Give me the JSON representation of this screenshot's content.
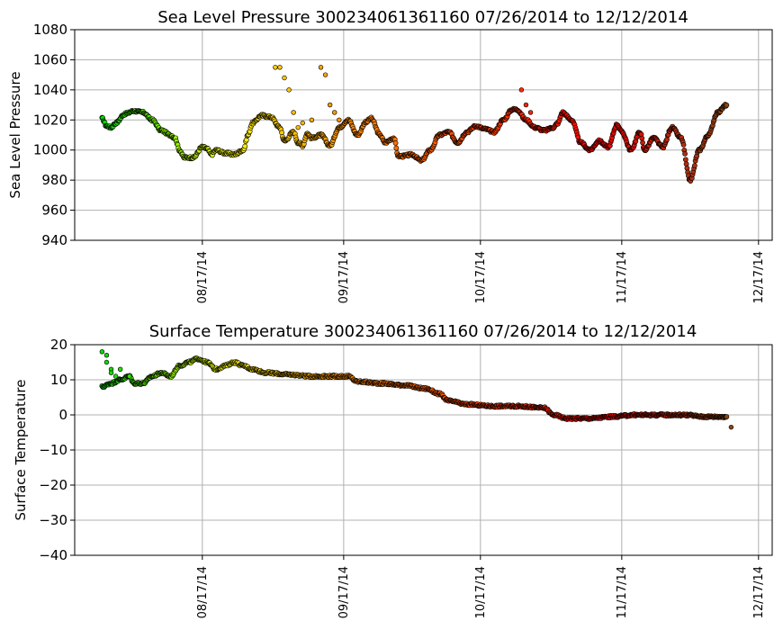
{
  "chart_data": [
    {
      "type": "scatter",
      "title": "Sea Level Pressure 300234061361160  07/26/2014 to 12/12/2014",
      "xlabel": "",
      "ylabel": "Sea Level Pressure",
      "ylim": [
        940,
        1080
      ],
      "yticks": [
        "940",
        "960",
        "980",
        "1000",
        "1020",
        "1040",
        "1060",
        "1080"
      ],
      "xlim": [
        "2014-07-20",
        "2014-12-20"
      ],
      "xticks": [
        "08/17/14",
        "09/17/14",
        "10/17/14",
        "11/17/14",
        "12/17/14"
      ],
      "grid": true,
      "color_stops": [
        "#00dd00",
        "#ffff00",
        "#ff8800",
        "#ff4400",
        "#ff0000",
        "#8b4513"
      ],
      "keypoints": [
        [
          "07/26",
          1021
        ],
        [
          "07/27",
          1016
        ],
        [
          "07/28",
          1015
        ],
        [
          "07/29",
          1018
        ],
        [
          "07/31",
          1024
        ],
        [
          "08/02",
          1026
        ],
        [
          "08/04",
          1025
        ],
        [
          "08/06",
          1020
        ],
        [
          "08/08",
          1013
        ],
        [
          "08/10",
          1010
        ],
        [
          "08/11",
          1008
        ],
        [
          "08/12",
          1000
        ],
        [
          "08/13",
          995
        ],
        [
          "08/15",
          995
        ],
        [
          "08/17",
          1002
        ],
        [
          "08/18",
          1001
        ],
        [
          "08/19",
          997
        ],
        [
          "08/20",
          1000
        ],
        [
          "08/22",
          998
        ],
        [
          "08/24",
          997
        ],
        [
          "08/26",
          1000
        ],
        [
          "08/27",
          1010
        ],
        [
          "08/28",
          1018
        ],
        [
          "08/30",
          1023
        ],
        [
          "09/01",
          1022
        ],
        [
          "09/03",
          1015
        ],
        [
          "09/04",
          1006
        ],
        [
          "09/06",
          1012
        ],
        [
          "09/07",
          1005
        ],
        [
          "09/08",
          1003
        ],
        [
          "09/09",
          1011
        ],
        [
          "09/10",
          1008
        ],
        [
          "09/12",
          1010
        ],
        [
          "09/14",
          1003
        ],
        [
          "09/16",
          1015
        ],
        [
          "09/18",
          1020
        ],
        [
          "09/20",
          1010
        ],
        [
          "09/22",
          1019
        ],
        [
          "09/23",
          1021
        ],
        [
          "09/25",
          1010
        ],
        [
          "09/26",
          1005
        ],
        [
          "09/28",
          1008
        ],
        [
          "09/29",
          996
        ],
        [
          "09/30",
          996
        ],
        [
          "10/02",
          997
        ],
        [
          "10/04",
          993
        ],
        [
          "10/06",
          1000
        ],
        [
          "10/08",
          1010
        ],
        [
          "10/10",
          1012
        ],
        [
          "10/12",
          1005
        ],
        [
          "10/14",
          1012
        ],
        [
          "10/16",
          1016
        ],
        [
          "10/18",
          1014
        ],
        [
          "10/20",
          1012
        ],
        [
          "10/22",
          1020
        ],
        [
          "10/24",
          1027
        ],
        [
          "10/25",
          1027
        ],
        [
          "10/27",
          1020
        ],
        [
          "10/29",
          1015
        ],
        [
          "10/31",
          1013
        ],
        [
          "11/02",
          1015
        ],
        [
          "11/03",
          1018
        ],
        [
          "11/04",
          1025
        ],
        [
          "11/06",
          1020
        ],
        [
          "11/08",
          1005
        ],
        [
          "11/10",
          1000
        ],
        [
          "11/12",
          1006
        ],
        [
          "11/14",
          1002
        ],
        [
          "11/16",
          1017
        ],
        [
          "11/17",
          1012
        ],
        [
          "11/19",
          1000
        ],
        [
          "11/21",
          1012
        ],
        [
          "11/22",
          1000
        ],
        [
          "11/24",
          1008
        ],
        [
          "11/26",
          1002
        ],
        [
          "11/28",
          1015
        ],
        [
          "11/30",
          1008
        ],
        [
          "12/02",
          980
        ],
        [
          "12/04",
          1000
        ],
        [
          "12/06",
          1010
        ],
        [
          "12/08",
          1025
        ],
        [
          "12/10",
          1030
        ]
      ],
      "outliers": [
        [
          "09/02",
          1055
        ],
        [
          "09/03",
          1055
        ],
        [
          "09/04",
          1048
        ],
        [
          "09/05",
          1040
        ],
        [
          "09/06",
          1025
        ],
        [
          "09/07",
          1015
        ],
        [
          "09/08",
          1018
        ],
        [
          "09/10",
          1020
        ],
        [
          "09/12",
          1055
        ],
        [
          "09/13",
          1050
        ],
        [
          "09/14",
          1030
        ],
        [
          "09/15",
          1025
        ],
        [
          "09/16",
          1020
        ],
        [
          "10/26",
          1040
        ],
        [
          "10/27",
          1030
        ],
        [
          "10/28",
          1025
        ]
      ]
    },
    {
      "type": "scatter",
      "title": "Surface Temperature 300234061361160  07/26/2014 to 12/12/2014",
      "xlabel": "",
      "ylabel": "Surface Temperature",
      "ylim": [
        -40,
        20
      ],
      "yticks": [
        "−40",
        "−30",
        "−20",
        "−10",
        "0",
        "10",
        "20"
      ],
      "xlim": [
        "2014-07-20",
        "2014-12-20"
      ],
      "xticks": [
        "08/17/14",
        "09/17/14",
        "10/17/14",
        "11/17/14",
        "12/17/14"
      ],
      "grid": true,
      "color_stops": [
        "#00dd00",
        "#ffff00",
        "#ff8800",
        "#ff4400",
        "#ff0000",
        "#8b4513"
      ],
      "keypoints": [
        [
          "07/26",
          8
        ],
        [
          "07/28",
          9
        ],
        [
          "07/30",
          10
        ],
        [
          "08/01",
          11
        ],
        [
          "08/02",
          9
        ],
        [
          "08/04",
          9
        ],
        [
          "08/06",
          11
        ],
        [
          "08/08",
          12
        ],
        [
          "08/10",
          11
        ],
        [
          "08/12",
          14
        ],
        [
          "08/14",
          15
        ],
        [
          "08/16",
          16
        ],
        [
          "08/18",
          15
        ],
        [
          "08/20",
          13
        ],
        [
          "08/22",
          14
        ],
        [
          "08/24",
          15
        ],
        [
          "08/26",
          14
        ],
        [
          "08/28",
          13
        ],
        [
          "08/31",
          12
        ],
        [
          "09/05",
          11.5
        ],
        [
          "09/10",
          11
        ],
        [
          "09/15",
          11
        ],
        [
          "09/18",
          11
        ],
        [
          "09/20",
          9.5
        ],
        [
          "09/25",
          9
        ],
        [
          "09/30",
          8.5
        ],
        [
          "10/05",
          7.5
        ],
        [
          "10/08",
          6
        ],
        [
          "10/10",
          4
        ],
        [
          "10/14",
          3
        ],
        [
          "10/20",
          2.5
        ],
        [
          "10/25",
          2.5
        ],
        [
          "10/31",
          2
        ],
        [
          "11/02",
          0
        ],
        [
          "11/05",
          -1
        ],
        [
          "11/10",
          -1
        ],
        [
          "11/15",
          -0.5
        ],
        [
          "11/20",
          0
        ],
        [
          "11/25",
          0
        ],
        [
          "12/01",
          0
        ],
        [
          "12/05",
          -0.5
        ],
        [
          "12/10",
          -0.5
        ]
      ],
      "outliers": [
        [
          "07/26",
          18
        ],
        [
          "07/27",
          17
        ],
        [
          "07/27",
          15
        ],
        [
          "07/28",
          13
        ],
        [
          "07/28",
          12
        ],
        [
          "07/29",
          11
        ],
        [
          "07/30",
          13
        ],
        [
          "08/01",
          11
        ],
        [
          "12/11",
          -3.5
        ]
      ]
    }
  ]
}
